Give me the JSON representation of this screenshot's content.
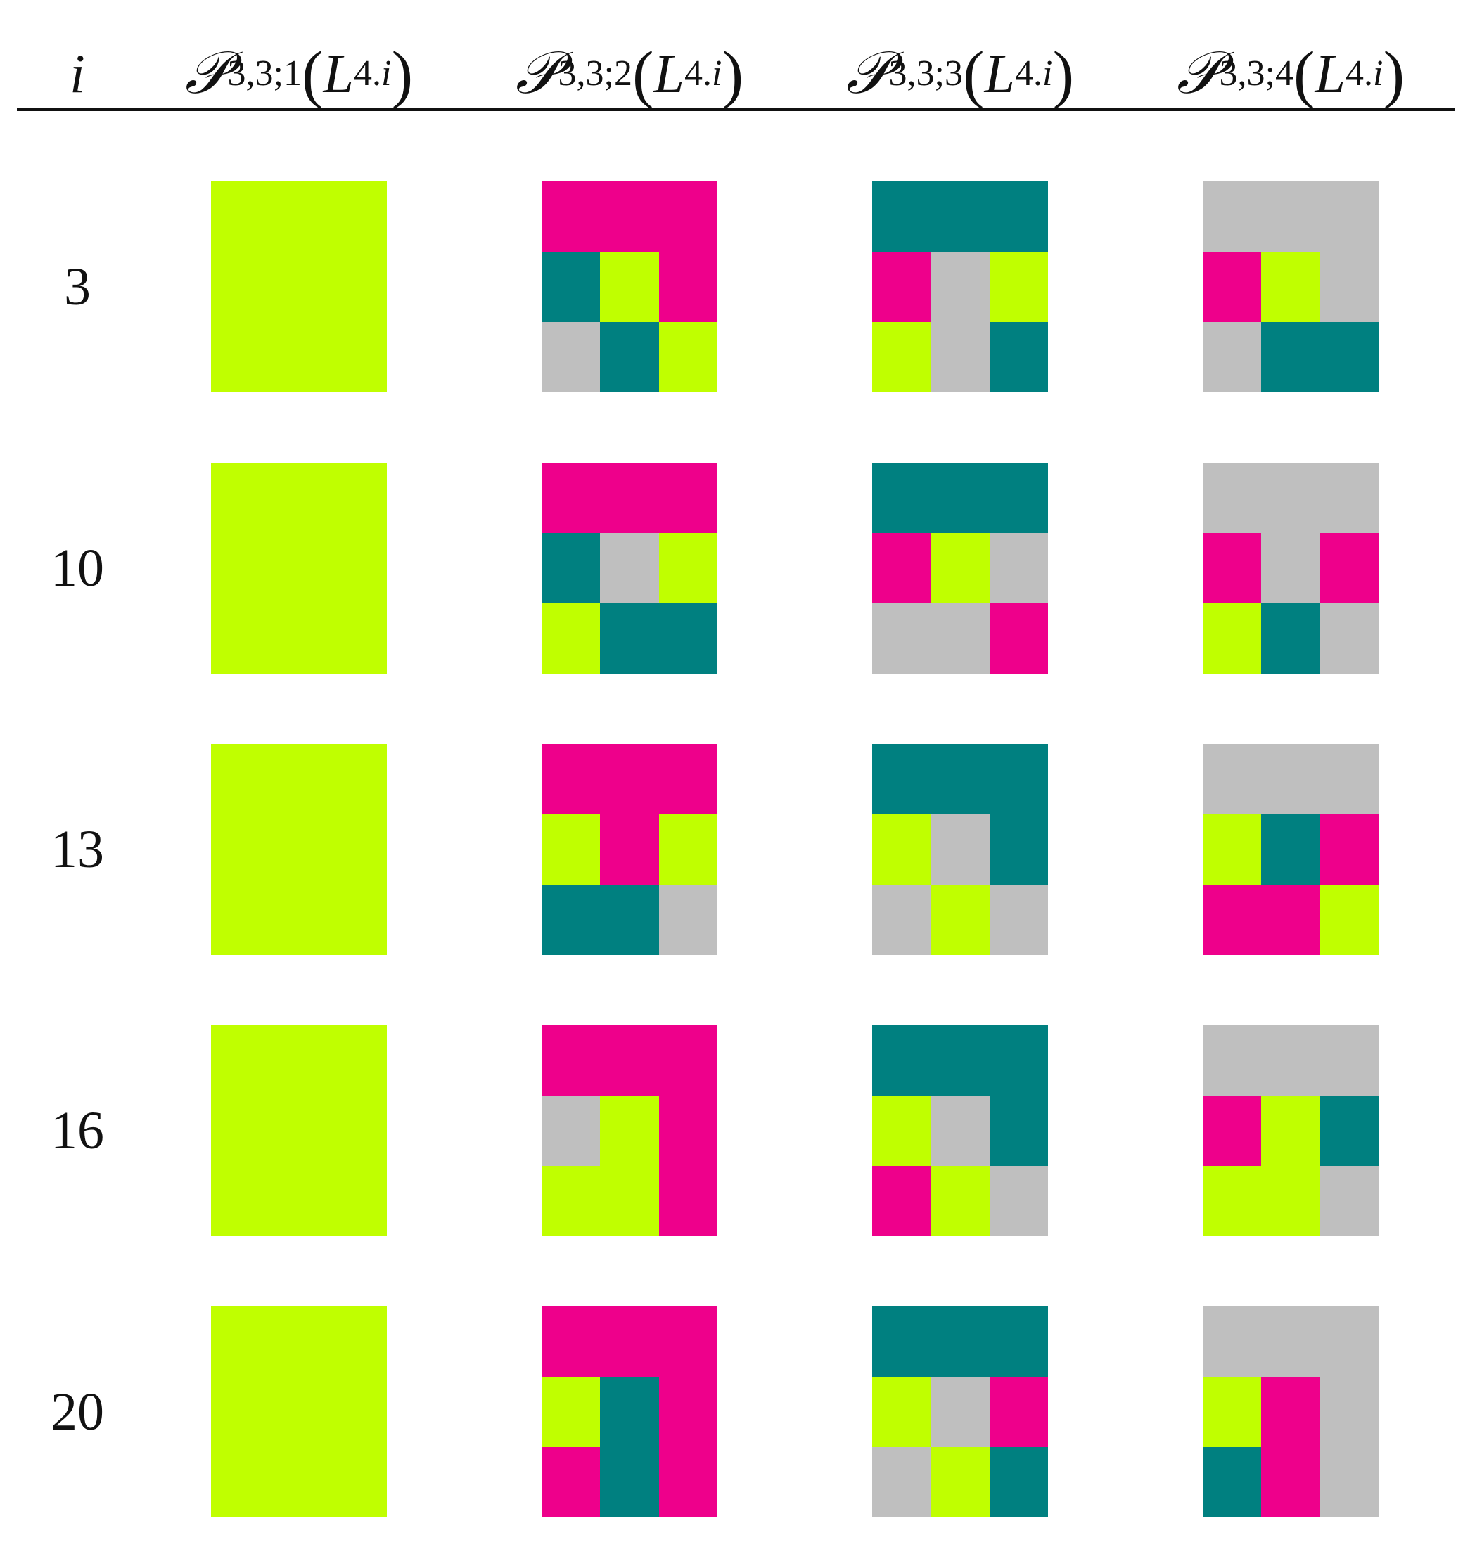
{
  "header": {
    "index_label": "i",
    "columns": [
      {
        "script_letter": "𝒫",
        "sub_prefix": "3,3;",
        "sub_k": "1",
        "open": "(",
        "arg_letter": "L",
        "arg_sub_num": "4.",
        "arg_sub_it": "i",
        "close": ")"
      },
      {
        "script_letter": "𝒫",
        "sub_prefix": "3,3;",
        "sub_k": "2",
        "open": "(",
        "arg_letter": "L",
        "arg_sub_num": "4.",
        "arg_sub_it": "i",
        "close": ")"
      },
      {
        "script_letter": "𝒫",
        "sub_prefix": "3,3;",
        "sub_k": "3",
        "open": "(",
        "arg_letter": "L",
        "arg_sub_num": "4.",
        "arg_sub_it": "i",
        "close": ")"
      },
      {
        "script_letter": "𝒫",
        "sub_prefix": "3,3;",
        "sub_k": "4",
        "open": "(",
        "arg_letter": "L",
        "arg_sub_num": "4.",
        "arg_sub_it": "i",
        "close": ")"
      }
    ]
  },
  "palette": {
    "G": "#c0ff00",
    "M": "#ee008b",
    "T": "#008080",
    "S": "#bfbfbf"
  },
  "rows": [
    {
      "i": "3",
      "tiles": [
        [
          "G",
          "G",
          "G",
          "G",
          "G",
          "G",
          "G",
          "G",
          "G"
        ],
        [
          "M",
          "M",
          "M",
          "T",
          "G",
          "M",
          "S",
          "T",
          "G"
        ],
        [
          "T",
          "T",
          "T",
          "M",
          "S",
          "G",
          "G",
          "S",
          "T"
        ],
        [
          "S",
          "S",
          "S",
          "M",
          "G",
          "S",
          "S",
          "T",
          "T"
        ]
      ]
    },
    {
      "i": "10",
      "tiles": [
        [
          "G",
          "G",
          "G",
          "G",
          "G",
          "G",
          "G",
          "G",
          "G"
        ],
        [
          "M",
          "M",
          "M",
          "T",
          "S",
          "G",
          "G",
          "T",
          "T"
        ],
        [
          "T",
          "T",
          "T",
          "M",
          "G",
          "S",
          "S",
          "S",
          "M"
        ],
        [
          "S",
          "S",
          "S",
          "M",
          "S",
          "M",
          "G",
          "T",
          "S"
        ]
      ]
    },
    {
      "i": "13",
      "tiles": [
        [
          "G",
          "G",
          "G",
          "G",
          "G",
          "G",
          "G",
          "G",
          "G"
        ],
        [
          "M",
          "M",
          "M",
          "G",
          "M",
          "G",
          "T",
          "T",
          "S"
        ],
        [
          "T",
          "T",
          "T",
          "G",
          "S",
          "T",
          "S",
          "G",
          "S"
        ],
        [
          "S",
          "S",
          "S",
          "G",
          "T",
          "M",
          "M",
          "M",
          "G"
        ]
      ]
    },
    {
      "i": "16",
      "tiles": [
        [
          "G",
          "G",
          "G",
          "G",
          "G",
          "G",
          "G",
          "G",
          "G"
        ],
        [
          "M",
          "M",
          "M",
          "S",
          "G",
          "M",
          "G",
          "G",
          "M"
        ],
        [
          "T",
          "T",
          "T",
          "G",
          "S",
          "T",
          "M",
          "G",
          "S"
        ],
        [
          "S",
          "S",
          "S",
          "M",
          "G",
          "T",
          "G",
          "G",
          "S"
        ]
      ]
    },
    {
      "i": "20",
      "tiles": [
        [
          "G",
          "G",
          "G",
          "G",
          "G",
          "G",
          "G",
          "G",
          "G"
        ],
        [
          "M",
          "M",
          "M",
          "G",
          "T",
          "M",
          "M",
          "T",
          "M"
        ],
        [
          "T",
          "T",
          "T",
          "G",
          "S",
          "M",
          "S",
          "G",
          "T"
        ],
        [
          "S",
          "S",
          "S",
          "G",
          "M",
          "S",
          "T",
          "M",
          "S"
        ]
      ]
    }
  ]
}
